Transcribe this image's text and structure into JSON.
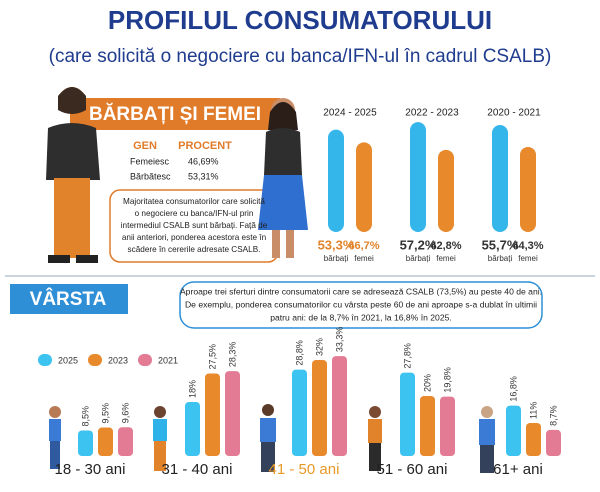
{
  "header": {
    "title": "PROFILUL CONSUMATORULUI",
    "subtitle": "(care solicită o negociere cu banca/IFN-ul în cadrul CSALB)"
  },
  "gender_section": {
    "title": "BĂRBAȚI ȘI FEMEI",
    "table": {
      "header": [
        "GEN",
        "PROCENT"
      ],
      "rows": [
        [
          "Femeiesc",
          "46,69%"
        ],
        [
          "Bărbătesc",
          "53,31%"
        ]
      ]
    },
    "note": [
      "Majoritatea consumatorilor care solicită",
      "o negociere cu banca/IFN-ul prin",
      "intermediul CSALB sunt bărbați. Față de",
      "anii anteriori, ponderea acestora este în",
      "scădere în cererile adresate CSALB."
    ]
  },
  "age_section": {
    "title": "VÂRSTA",
    "note": [
      "Aproape trei sferturi dintre consumatorii care se adresează CSALB (73,5%) au peste 40 de ani.",
      "De exemplu, ponderea consumatorilor cu vârsta peste 60 de ani aproape s-a dublat în ultimii",
      "patru ani: de la 8,7% în 2021, la 16,8% în 2025."
    ]
  },
  "chart_data": [
    {
      "type": "bar",
      "categories": [
        "2024 - 2025",
        "2022 - 2023",
        "2020 - 2021"
      ],
      "series": [
        {
          "name": "bărbați",
          "color": "#35b6ea",
          "values": [
            53.3,
            57.2,
            55.7
          ],
          "value_labels": [
            "53,3%",
            "57,2%",
            "55,7%"
          ]
        },
        {
          "name": "femei",
          "color": "#e8892c",
          "values": [
            46.7,
            42.8,
            44.3
          ],
          "value_labels": [
            "46,7%",
            "42,8%",
            "44,3%"
          ]
        }
      ]
    },
    {
      "type": "bar",
      "categories": [
        "18 - 30 ani",
        "31 - 40 ani",
        "41 - 50 ani",
        "51 - 60 ani",
        "61+ ani"
      ],
      "series": [
        {
          "name": "2025",
          "color": "#3cc3ef",
          "values": [
            8.5,
            18,
            28.8,
            27.8,
            16.8
          ],
          "value_labels": [
            "8,5%",
            "18%",
            "28,8%",
            "27,8%",
            "16,8%"
          ]
        },
        {
          "name": "2023",
          "color": "#e8892c",
          "values": [
            9.5,
            27.5,
            32,
            20,
            11
          ],
          "value_labels": [
            "9,5%",
            "27,5%",
            "32%",
            "20%",
            "11%"
          ]
        },
        {
          "name": "2021",
          "color": "#e27b93",
          "values": [
            9.6,
            28.3,
            33.3,
            19.8,
            8.7
          ],
          "value_labels": [
            "9,6%",
            "28,3%",
            "33,3%",
            "19,8%",
            "8,7%"
          ]
        }
      ]
    }
  ]
}
